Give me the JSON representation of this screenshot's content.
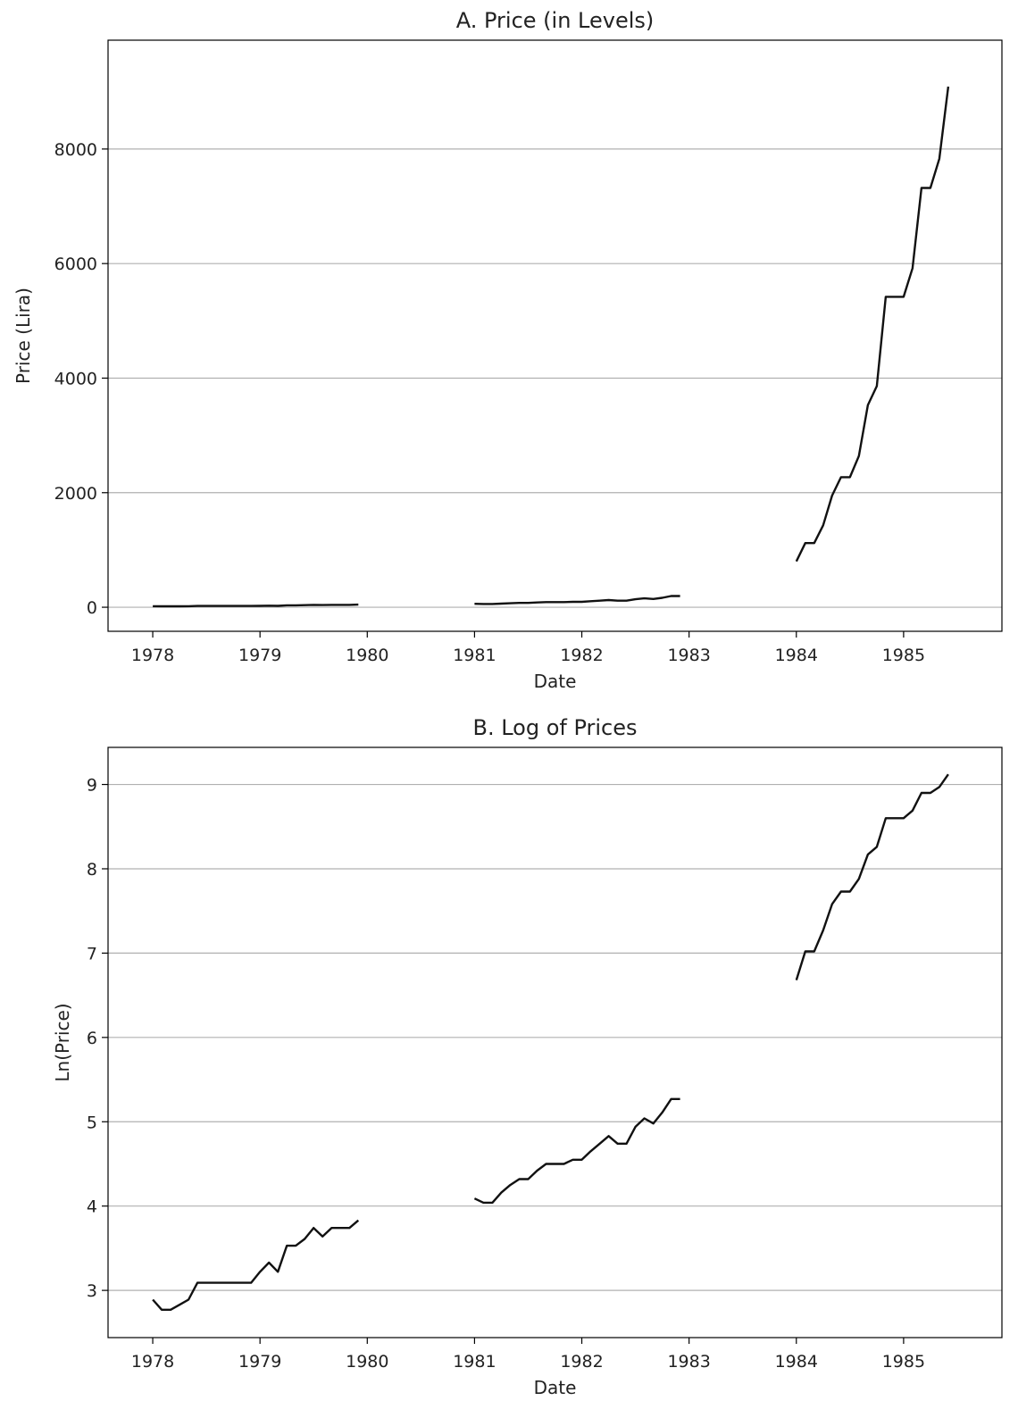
{
  "chart_data": [
    {
      "type": "line",
      "title": "A. Price (in Levels)",
      "xlabel": "Date",
      "ylabel": "Price (Lira)",
      "x_ticks": [
        "1978",
        "1979",
        "1980",
        "1981",
        "1982",
        "1983",
        "1984",
        "1985"
      ],
      "y_ticks": [
        0,
        2000,
        4000,
        6000,
        8000
      ],
      "xlim": [
        "1977-08",
        "1985-12"
      ],
      "ylim": [
        -420,
        9900
      ],
      "grid": "y",
      "line_color": "#111111",
      "segments": [
        {
          "x": [
            "1978-01",
            "1978-02",
            "1978-03",
            "1978-04",
            "1978-05",
            "1978-06",
            "1978-07",
            "1978-08",
            "1978-09",
            "1978-10",
            "1978-11",
            "1978-12",
            "1979-01",
            "1979-02",
            "1979-03",
            "1979-04",
            "1979-05",
            "1979-06",
            "1979-07",
            "1979-08",
            "1979-09",
            "1979-10",
            "1979-11",
            "1979-12"
          ],
          "y": [
            18,
            16,
            16,
            17,
            18,
            22,
            22,
            22,
            22,
            22,
            22,
            22,
            25,
            28,
            25,
            34,
            34,
            37,
            42,
            38,
            42,
            42,
            42,
            46
          ]
        },
        {
          "x": [
            "1981-01",
            "1981-02",
            "1981-03",
            "1981-04",
            "1981-05",
            "1981-06",
            "1981-07",
            "1981-08",
            "1981-09",
            "1981-10",
            "1981-11",
            "1981-12",
            "1982-01",
            "1982-02",
            "1982-03",
            "1982-04",
            "1982-05",
            "1982-06",
            "1982-07",
            "1982-08",
            "1982-09",
            "1982-10",
            "1982-11",
            "1982-12"
          ],
          "y": [
            60,
            57,
            57,
            64,
            70,
            75,
            75,
            83,
            90,
            90,
            90,
            95,
            95,
            105,
            115,
            125,
            115,
            115,
            140,
            155,
            145,
            165,
            195,
            195
          ]
        },
        {
          "x": [
            "1984-01",
            "1984-02",
            "1984-03",
            "1984-04",
            "1984-05",
            "1984-06",
            "1984-07",
            "1984-08",
            "1984-09",
            "1984-10",
            "1984-11",
            "1984-12",
            "1985-01",
            "1985-02",
            "1985-03",
            "1985-04",
            "1985-05",
            "1985-06"
          ],
          "y": [
            800,
            1120,
            1120,
            1430,
            1950,
            2270,
            2270,
            2640,
            3530,
            3860,
            5420,
            5420,
            5420,
            5920,
            7320,
            7320,
            7830,
            9090
          ]
        }
      ]
    },
    {
      "type": "line",
      "title": "B. Log of Prices",
      "xlabel": "Date",
      "ylabel": "Ln(Price)",
      "x_ticks": [
        "1978",
        "1979",
        "1980",
        "1981",
        "1982",
        "1983",
        "1984",
        "1985"
      ],
      "y_ticks": [
        3,
        4,
        5,
        6,
        7,
        8,
        9
      ],
      "xlim": [
        "1977-08",
        "1985-12"
      ],
      "ylim": [
        2.44,
        9.44
      ],
      "grid": "y",
      "line_color": "#111111",
      "segments": [
        {
          "x": [
            "1978-01",
            "1978-02",
            "1978-03",
            "1978-04",
            "1978-05",
            "1978-06",
            "1978-07",
            "1978-08",
            "1978-09",
            "1978-10",
            "1978-11",
            "1978-12",
            "1979-01",
            "1979-02",
            "1979-03",
            "1979-04",
            "1979-05",
            "1979-06",
            "1979-07",
            "1979-08",
            "1979-09",
            "1979-10",
            "1979-11",
            "1979-12"
          ],
          "y": [
            2.89,
            2.77,
            2.77,
            2.83,
            2.89,
            3.09,
            3.09,
            3.09,
            3.09,
            3.09,
            3.09,
            3.09,
            3.22,
            3.33,
            3.22,
            3.53,
            3.53,
            3.61,
            3.74,
            3.64,
            3.74,
            3.74,
            3.74,
            3.83
          ]
        },
        {
          "x": [
            "1981-01",
            "1981-02",
            "1981-03",
            "1981-04",
            "1981-05",
            "1981-06",
            "1981-07",
            "1981-08",
            "1981-09",
            "1981-10",
            "1981-11",
            "1981-12",
            "1982-01",
            "1982-02",
            "1982-03",
            "1982-04",
            "1982-05",
            "1982-06",
            "1982-07",
            "1982-08",
            "1982-09",
            "1982-10",
            "1982-11",
            "1982-12"
          ],
          "y": [
            4.09,
            4.04,
            4.04,
            4.16,
            4.25,
            4.32,
            4.32,
            4.42,
            4.5,
            4.5,
            4.5,
            4.55,
            4.55,
            4.65,
            4.74,
            4.83,
            4.74,
            4.74,
            4.94,
            5.04,
            4.98,
            5.11,
            5.27,
            5.27
          ]
        },
        {
          "x": [
            "1984-01",
            "1984-02",
            "1984-03",
            "1984-04",
            "1984-05",
            "1984-06",
            "1984-07",
            "1984-08",
            "1984-09",
            "1984-10",
            "1984-11",
            "1984-12",
            "1985-01",
            "1985-02",
            "1985-03",
            "1985-04",
            "1985-05",
            "1985-06"
          ],
          "y": [
            6.68,
            7.02,
            7.02,
            7.27,
            7.58,
            7.73,
            7.73,
            7.88,
            8.17,
            8.26,
            8.6,
            8.6,
            8.6,
            8.69,
            8.9,
            8.9,
            8.97,
            9.12
          ]
        }
      ]
    }
  ]
}
